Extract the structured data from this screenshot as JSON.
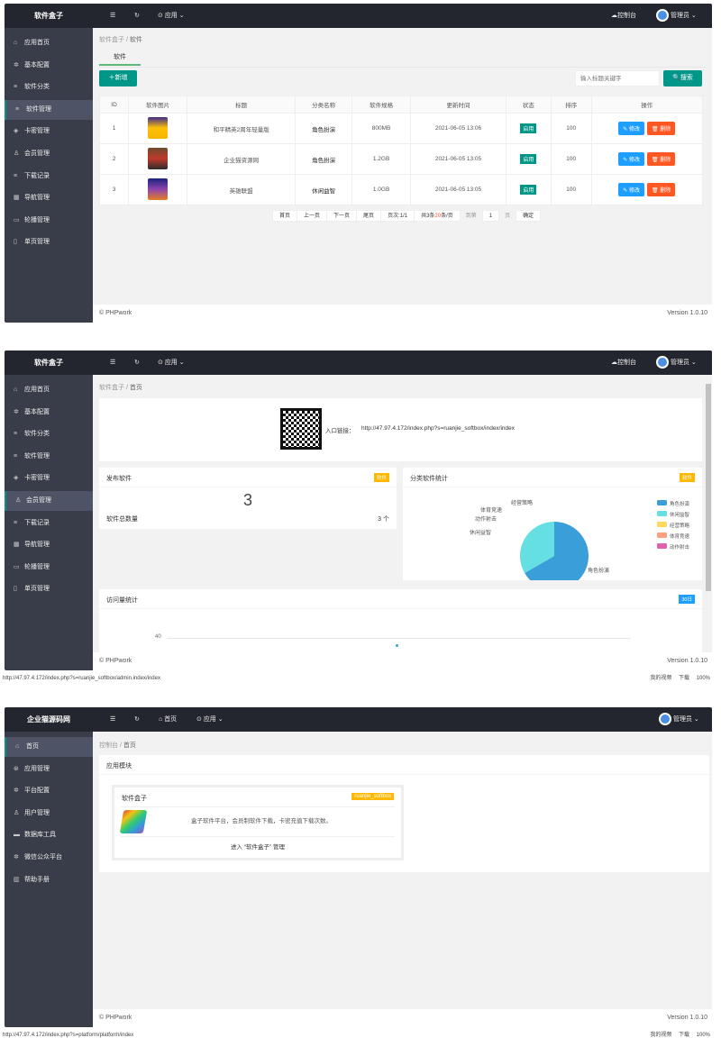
{
  "colors": {
    "header": "#23262e",
    "sidebar": "#393d49",
    "accent": "#009688",
    "edit": "#1e9fff",
    "delete": "#ff5722",
    "badge": "#ffb800"
  },
  "panel1": {
    "logo": "软件盒子",
    "header": {
      "menu_icon": "menu-icon",
      "refresh_icon": "refresh-icon",
      "apps": "应用",
      "console": "控制台",
      "user": "管理员"
    },
    "sidebar": [
      {
        "label": "应用首页",
        "icon": "home-icon"
      },
      {
        "label": "基本配置",
        "icon": "gear-icon"
      },
      {
        "label": "软件分类",
        "icon": "list-icon"
      },
      {
        "label": "软件管理",
        "icon": "list-icon",
        "active": true
      },
      {
        "label": "卡密管理",
        "icon": "layers-icon"
      },
      {
        "label": "会员管理",
        "icon": "user-icon"
      },
      {
        "label": "下载记录",
        "icon": "list-icon"
      },
      {
        "label": "导航管理",
        "icon": "calendar-icon"
      },
      {
        "label": "轮播管理",
        "icon": "image-icon"
      },
      {
        "label": "单页管理",
        "icon": "file-icon"
      }
    ],
    "breadcrumb": [
      "软件盒子",
      "软件"
    ],
    "tab": "软件",
    "add_button": "新增",
    "search_placeholder": "输入标题关键字",
    "search_button": "搜索",
    "table": {
      "headers": [
        "ID",
        "软件图片",
        "标题",
        "分类名称",
        "软件规格",
        "更新时间",
        "状态",
        "排序",
        "操作"
      ],
      "rows": [
        {
          "id": "1",
          "title": "和平精英2周年轻量版",
          "category": "角色扮演",
          "size": "800MB",
          "time": "2021-06-05 13:06",
          "status": "启用",
          "sort": "100"
        },
        {
          "id": "2",
          "title": "企业猫资源网",
          "category": "角色扮演",
          "size": "1.2GB",
          "time": "2021-06-05 13:05",
          "status": "启用",
          "sort": "100"
        },
        {
          "id": "3",
          "title": "英雄联盟",
          "category": "休闲益智",
          "size": "1.0GB",
          "time": "2021-06-05 13:05",
          "status": "启用",
          "sort": "100"
        }
      ],
      "edit_label": "修改",
      "delete_label": "删除"
    },
    "pagination": {
      "first": "首页",
      "prev": "上一页",
      "next": "下一页",
      "last": "尾页",
      "page_info": "页次:1/1",
      "total_prefix": "共3条",
      "per_page": "20",
      "total_suffix": "条/页",
      "goto": "到第",
      "page_value": "1",
      "page_unit": "页",
      "confirm": "确定"
    },
    "footer": {
      "copyright": "© PHPwork",
      "version": "Version 1.0.10"
    }
  },
  "panel2": {
    "logo": "软件盒子",
    "header": {
      "apps": "应用",
      "console": "控制台",
      "user": "管理员"
    },
    "active_index": 5,
    "breadcrumb": [
      "软件盒子",
      "首页"
    ],
    "entry_label": "入口链接：",
    "entry_url": "http://47.97.4.172/index.php?s=ruanjie_softbox/index/index",
    "publish": {
      "title": "发布软件",
      "badge": "软件",
      "count": "3",
      "label": "软件总数量",
      "value": "3 个"
    },
    "category_stats": {
      "title": "分类软件统计",
      "badge": "软件"
    },
    "visits": {
      "title": "访问量统计",
      "badge": "30日",
      "y_tick": "40"
    },
    "footer": {
      "copyright": "© PHPwork",
      "version": "Version 1.0.10"
    },
    "status_url": "http://47.97.4.172/index.php?s=ruanjie_softbox/admin.index/index",
    "status_right": "我的视频 下载 100%"
  },
  "panel3": {
    "logo": "企业猫源码网",
    "header": {
      "home": "首页",
      "apps": "应用",
      "user": "管理员"
    },
    "sidebar": [
      {
        "label": "首页",
        "icon": "home-icon",
        "active": true
      },
      {
        "label": "应用管理",
        "icon": "app-icon"
      },
      {
        "label": "平台配置",
        "icon": "gear-icon"
      },
      {
        "label": "用户管理",
        "icon": "user-icon"
      },
      {
        "label": "数据库工具",
        "icon": "database-icon"
      },
      {
        "label": "微信公众平台",
        "icon": "wechat-icon"
      },
      {
        "label": "帮助手册",
        "icon": "book-icon"
      }
    ],
    "breadcrumb": [
      "控制台",
      "首页"
    ],
    "section_title": "应用模块",
    "app": {
      "name": "软件盒子",
      "tag": "ruanjie_softbox",
      "desc": "盒子软件平台，会员制软件下载，卡密充值下载次数。",
      "enter": "进入 “软件盒子” 管理"
    },
    "footer": {
      "copyright": "© PHPwork",
      "version": "Version 1.0.10"
    },
    "status_url": "http://47.97.4.172/index.php?s=platform/platform/index",
    "status_right": "我的视频 下载 100%"
  },
  "chart_data": {
    "type": "pie",
    "title": "分类软件统计",
    "categories": [
      "角色扮演",
      "休闲益智",
      "经营策略",
      "体育竞速",
      "动作射击"
    ],
    "values": [
      2,
      1,
      0,
      0,
      0
    ],
    "colors": [
      "#3a9fd8",
      "#65dfe2",
      "#ffd85c",
      "#ff9f7f",
      "#e062ae"
    ],
    "legend": "right"
  }
}
